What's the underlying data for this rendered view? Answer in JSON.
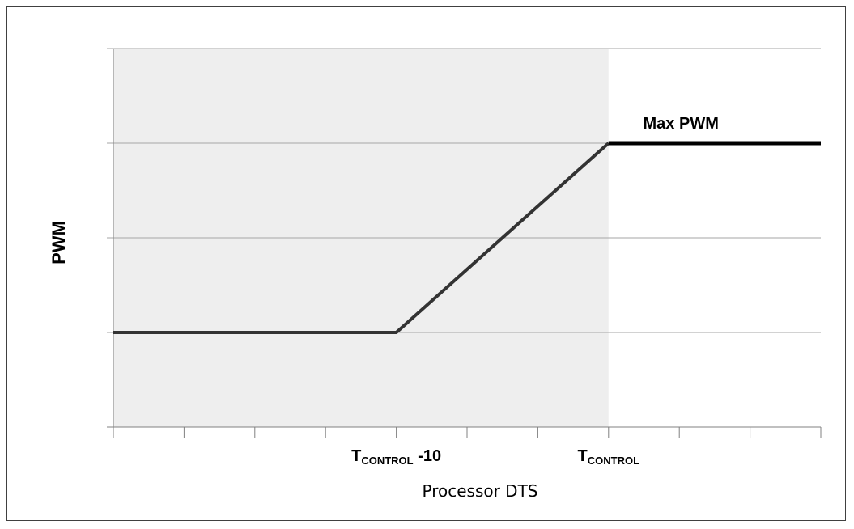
{
  "chart_data": {
    "type": "line",
    "title": "",
    "xlabel": "Processor DTS",
    "ylabel": "PWM",
    "x_tick_labels": [
      {
        "main": "T",
        "sub": "CONTROL",
        "suffix": " -10",
        "at": 4
      },
      {
        "main": "T",
        "sub": "CONTROL",
        "suffix": "",
        "at": 7
      }
    ],
    "x_ticks": 10,
    "xlim": [
      0,
      10
    ],
    "ylim": [
      0,
      4
    ],
    "y_gridlines": [
      1,
      2,
      3,
      4
    ],
    "shaded_region": {
      "x_from": 0,
      "x_to": 7,
      "color": "#eeeeee"
    },
    "series": [
      {
        "color": "#333333",
        "points": [
          [
            0,
            1
          ],
          [
            4,
            1
          ],
          [
            7,
            3
          ]
        ]
      },
      {
        "color": "#000000",
        "points": [
          [
            7,
            3
          ],
          [
            10,
            3
          ]
        ]
      }
    ],
    "annotations": [
      {
        "text": "Max PWM",
        "x": 8,
        "y": 3
      }
    ],
    "grid": true,
    "colors": {
      "grid": "#a6a6a6",
      "axis": "#808080",
      "shade": "#eeeeee"
    }
  }
}
